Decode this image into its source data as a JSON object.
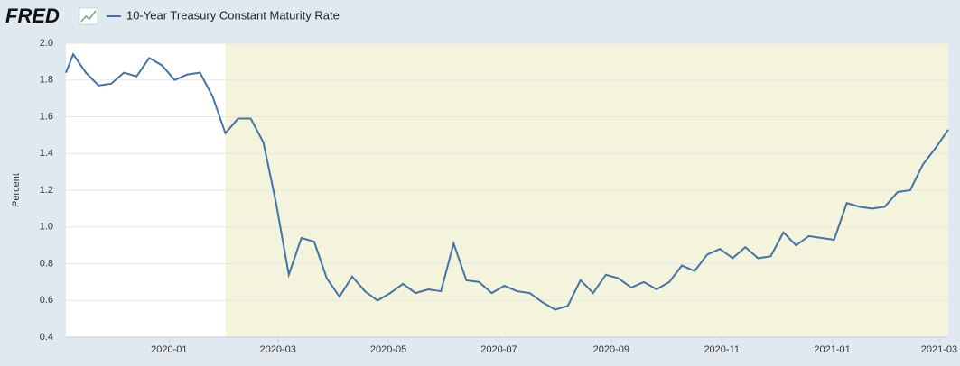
{
  "chart_data": {
    "type": "line",
    "brand": "FRED",
    "y_label": "Percent",
    "x": [
      -57,
      -53,
      -46,
      -39,
      -32,
      -25,
      -18,
      -11,
      -4,
      3,
      10,
      17,
      24,
      31,
      38,
      45,
      52,
      59,
      66,
      73,
      80,
      87,
      94,
      101,
      108,
      115,
      122,
      129,
      136,
      143,
      150,
      157,
      164,
      171,
      178,
      185,
      192,
      199,
      206,
      213,
      220,
      227,
      234,
      241,
      248,
      255,
      262,
      269,
      276,
      283,
      290,
      297,
      304,
      311,
      318,
      325,
      332,
      339,
      346,
      353,
      360,
      367,
      374,
      381,
      388,
      395,
      402,
      409,
      416,
      423,
      430
    ],
    "series": [
      {
        "name": "10-Year Treasury Constant Maturity Rate",
        "color": "#4572a7",
        "values": [
          1.84,
          1.94,
          1.84,
          1.77,
          1.78,
          1.84,
          1.82,
          1.92,
          1.88,
          1.8,
          1.83,
          1.84,
          1.71,
          1.51,
          1.59,
          1.59,
          1.46,
          1.13,
          0.74,
          0.94,
          0.92,
          0.72,
          0.62,
          0.73,
          0.65,
          0.6,
          0.64,
          0.69,
          0.64,
          0.66,
          0.65,
          0.91,
          0.71,
          0.7,
          0.64,
          0.68,
          0.65,
          0.64,
          0.59,
          0.55,
          0.57,
          0.71,
          0.64,
          0.74,
          0.72,
          0.67,
          0.7,
          0.66,
          0.7,
          0.79,
          0.76,
          0.85,
          0.88,
          0.83,
          0.89,
          0.83,
          0.84,
          0.97,
          0.9,
          0.95,
          0.94,
          0.93,
          1.13,
          1.11,
          1.1,
          1.11,
          1.19,
          1.2,
          1.34,
          1.43,
          1.53
        ]
      }
    ],
    "xlim": [
      -57,
      430
    ],
    "xticks": [
      {
        "value": 0,
        "label": "2020-01"
      },
      {
        "value": 60,
        "label": "2020-03"
      },
      {
        "value": 121,
        "label": "2020-05"
      },
      {
        "value": 182,
        "label": "2020-07"
      },
      {
        "value": 244,
        "label": "2020-09"
      },
      {
        "value": 305,
        "label": "2020-11"
      },
      {
        "value": 366,
        "label": "2021-01"
      },
      {
        "value": 425,
        "label": "2021-03"
      }
    ],
    "ylim": [
      0.4,
      2.0
    ],
    "yticks": [
      0.4,
      0.6,
      0.8,
      {
        "value": 1.0,
        "label": "1.0"
      },
      1.2,
      1.4,
      1.6,
      1.8,
      {
        "value": 2.0,
        "label": "2.0"
      }
    ],
    "grid": true,
    "shading": {
      "start": 31,
      "color": "#f4f3dc"
    }
  }
}
